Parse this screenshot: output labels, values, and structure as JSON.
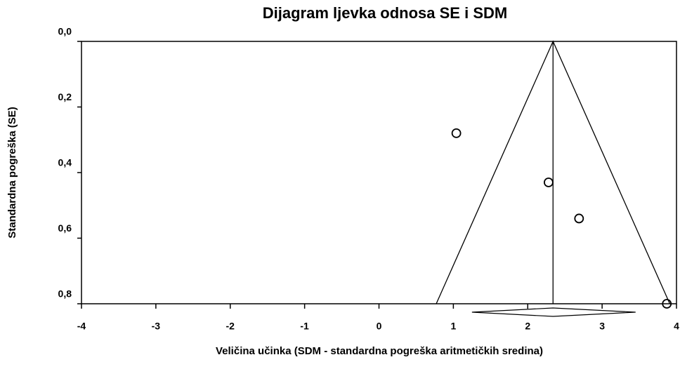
{
  "chart_data": {
    "type": "scatter",
    "title": "Dijagram ljevka odnosa SE i SDM",
    "xlabel": "Veličina učinka (SDM - standardna pogreška aritmetičkih sredina)",
    "ylabel": "Standardna pogreška (SE)",
    "x": [
      1.04,
      2.28,
      2.69,
      3.87
    ],
    "values": [
      0.28,
      0.43,
      0.54,
      0.8
    ],
    "xlim": [
      -4,
      4
    ],
    "xticks": [
      -4,
      -3,
      -2,
      -1,
      0,
      1,
      2,
      3,
      4
    ],
    "ylim": [
      0,
      0.8
    ],
    "y_inverted": true,
    "yticks": [
      {
        "value": 0,
        "label": "0,0"
      },
      {
        "value": 0.2,
        "label": "0,2"
      },
      {
        "value": 0.4,
        "label": "0,4"
      },
      {
        "value": 0.6,
        "label": "0,6"
      },
      {
        "value": 0.8,
        "label": "0,8"
      }
    ],
    "funnel": {
      "x": [
        0.77,
        2.34,
        3.91
      ],
      "y": [
        0.8,
        0,
        0.8
      ]
    },
    "summary": {
      "estimate": 2.34,
      "ci": [
        1.25,
        3.45
      ]
    },
    "color": "#000000"
  }
}
